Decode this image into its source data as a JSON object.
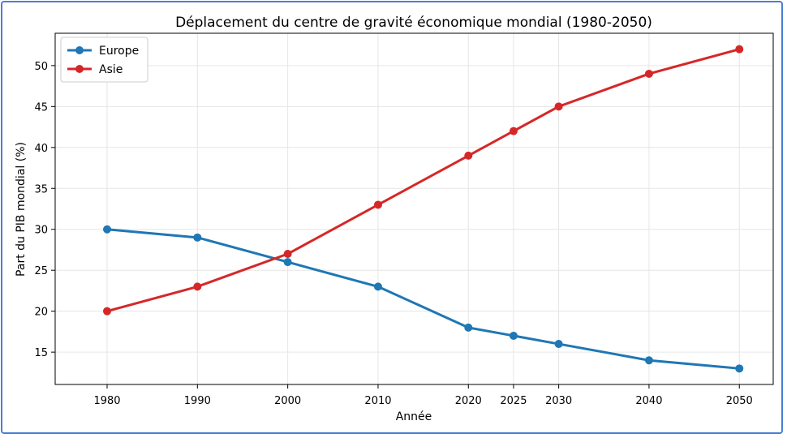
{
  "chart_data": {
    "type": "line",
    "title": "Déplacement du centre de gravité économique mondial (1980-2050)",
    "xlabel": "Année",
    "ylabel": "Part du PIB mondial (%)",
    "x": [
      1980,
      1990,
      2000,
      2010,
      2020,
      2025,
      2030,
      2040,
      2050
    ],
    "xticks": [
      "1980",
      "1990",
      "2000",
      "2010",
      "2020",
      "2025",
      "2030",
      "2040",
      "2050"
    ],
    "yticks": [
      "15",
      "20",
      "25",
      "30",
      "35",
      "40",
      "45",
      "50"
    ],
    "xlim": [
      1974.25,
      2053.75
    ],
    "ylim": [
      11.05,
      53.95
    ],
    "grid": true,
    "legend_position": "top-left",
    "series": [
      {
        "name": "Europe",
        "color": "#1f77b4",
        "values": [
          30,
          29,
          26,
          23,
          18,
          17,
          16,
          14,
          13
        ]
      },
      {
        "name": "Asie",
        "color": "#d62728",
        "values": [
          20,
          23,
          27,
          33,
          39,
          42,
          45,
          49,
          52
        ]
      }
    ]
  }
}
